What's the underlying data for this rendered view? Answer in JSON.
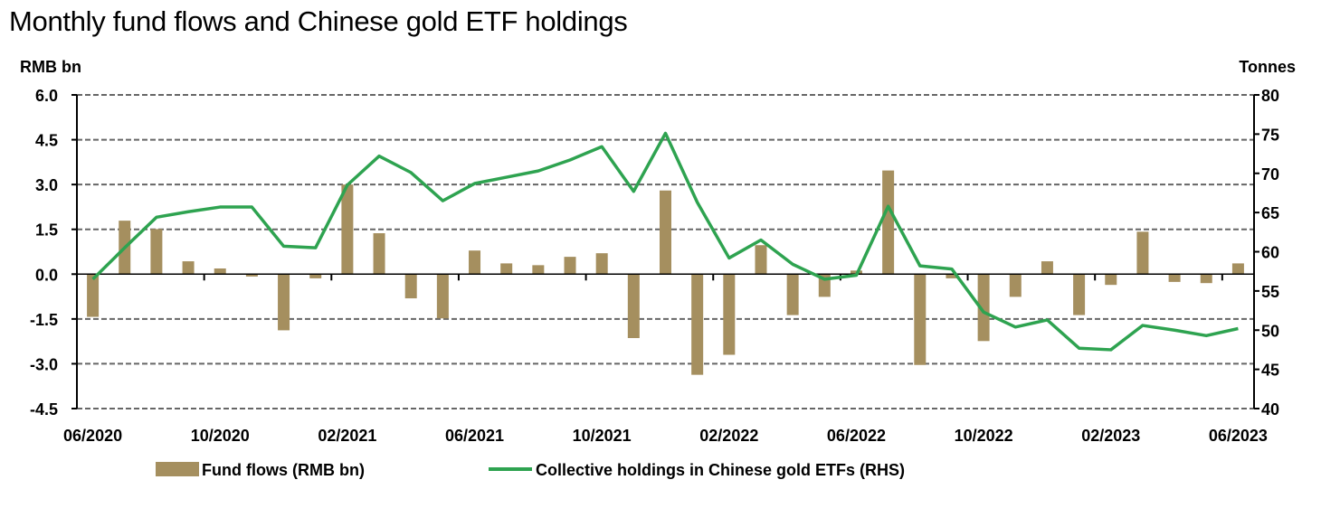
{
  "chart_data": {
    "type": "bar+line",
    "title": "Monthly fund flows and Chinese gold ETF holdings",
    "ylabel_left": "RMB bn",
    "ylabel_right": "Tonnes",
    "ylim_left": [
      -4.5,
      6.0
    ],
    "ylim_right": [
      40,
      80
    ],
    "yticks_left": [
      "6.0",
      "4.5",
      "3.0",
      "1.5",
      "0.0",
      "-1.5",
      "-3.0",
      "-4.5"
    ],
    "yticks_right": [
      "80",
      "75",
      "70",
      "65",
      "60",
      "55",
      "50",
      "45",
      "40"
    ],
    "xtick_labels": [
      "06/2020",
      "10/2020",
      "02/2021",
      "06/2021",
      "10/2021",
      "02/2022",
      "06/2022",
      "10/2022",
      "02/2023",
      "06/2023"
    ],
    "grid": true,
    "legend_placement": "bottom",
    "categories": [
      "06/2020",
      "07/2020",
      "08/2020",
      "09/2020",
      "10/2020",
      "11/2020",
      "12/2020",
      "01/2021",
      "02/2021",
      "03/2021",
      "04/2021",
      "05/2021",
      "06/2021",
      "07/2021",
      "08/2021",
      "09/2021",
      "10/2021",
      "11/2021",
      "12/2021",
      "01/2022",
      "02/2022",
      "03/2022",
      "04/2022",
      "05/2022",
      "06/2022",
      "07/2022",
      "08/2022",
      "09/2022",
      "10/2022",
      "11/2022",
      "12/2022",
      "01/2023",
      "02/2023",
      "03/2023",
      "04/2023",
      "05/2023",
      "06/2023"
    ],
    "series": [
      {
        "name": "Fund flows (RMB bn)",
        "type": "bar",
        "axis": "left",
        "color": "#A58F5F",
        "values": [
          -1.43,
          1.79,
          1.51,
          0.43,
          0.19,
          -0.08,
          -1.88,
          -0.14,
          3.0,
          1.37,
          -0.81,
          -1.48,
          0.79,
          0.36,
          0.3,
          0.58,
          0.7,
          -2.14,
          2.8,
          -3.37,
          -2.7,
          0.97,
          -1.37,
          -0.76,
          0.12,
          3.47,
          -3.04,
          -0.14,
          -2.24,
          -0.76,
          0.43,
          -1.37,
          -0.36,
          1.42,
          -0.26,
          -0.3,
          0.36
        ]
      },
      {
        "name": "Collective holdings in Chinese gold ETFs (RHS)",
        "type": "line",
        "axis": "right",
        "color": "#2EA350",
        "values": [
          56.5,
          60.5,
          64.4,
          65.1,
          65.7,
          65.7,
          60.7,
          60.5,
          68.5,
          72.2,
          70.1,
          66.5,
          68.7,
          69.5,
          70.3,
          71.7,
          73.4,
          67.7,
          75.1,
          66.3,
          59.2,
          61.5,
          58.4,
          56.5,
          57.0,
          65.8,
          58.2,
          57.8,
          52.3,
          50.4,
          51.3,
          47.7,
          47.5,
          50.6,
          50.0,
          49.3,
          50.2
        ]
      }
    ]
  }
}
